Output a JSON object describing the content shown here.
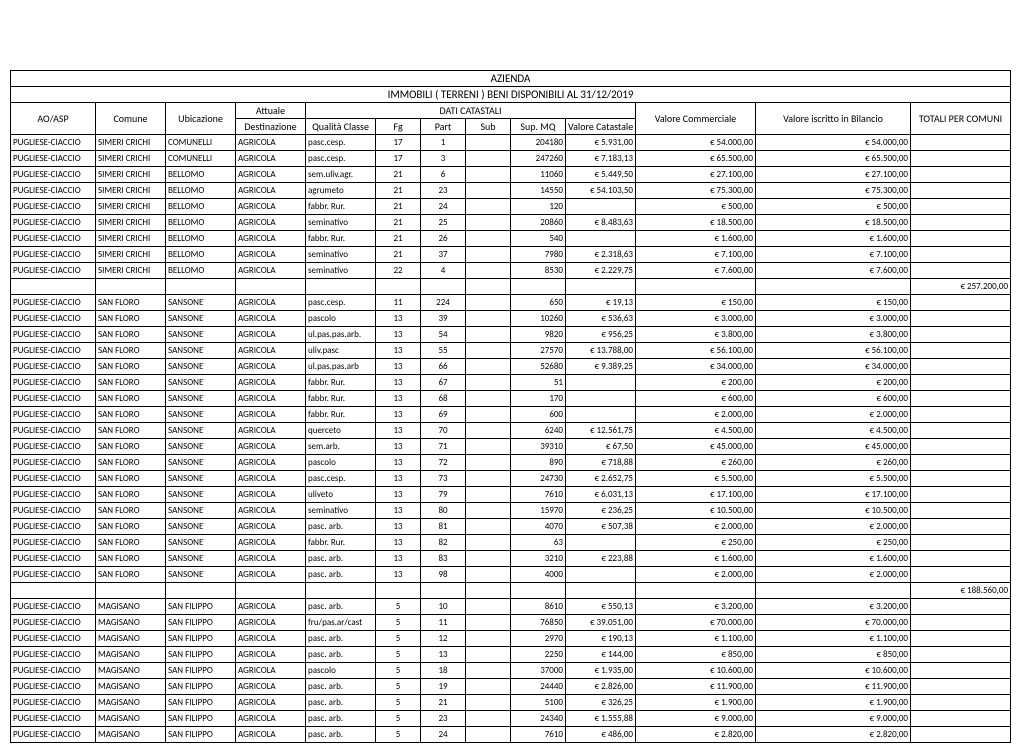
{
  "title1": "AZIENDA",
  "title2": "IMMOBILI ( TERRENI ) BENI DISPONIBILI AL 31/12/2019",
  "headers": {
    "ao": "AO/ASP",
    "comune": "Comune",
    "ubicazione": "Ubicazione",
    "attuale": "Attuale",
    "destinazione": "Destinazione",
    "dati": "DATI CATASTALI",
    "qc": "Qualità Classe",
    "fg": "Fg",
    "part": "Part",
    "sub": "Sub",
    "supmq": "Sup. MQ",
    "valc": "Valore Catastale",
    "vcom": "Valore Commerciale",
    "vbil": "Valore iscritto in Bilancio",
    "tot": "TOTALI PER COMUNI"
  },
  "rows": [
    {
      "ao": "PUGLIESE-CIACCIO",
      "com": "SIMERI CRICHI",
      "ubi": "COMUNELLI",
      "dest": "AGRICOLA",
      "qc": "pasc.cesp.",
      "fg": "17",
      "part": "1",
      "sub": "",
      "sup": "204180",
      "valc": "€ 5.931,00",
      "vcom": "€ 54.000,00",
      "vbil": "€ 54.000,00",
      "tot": ""
    },
    {
      "ao": "PUGLIESE-CIACCIO",
      "com": "SIMERI CRICHI",
      "ubi": "COMUNELLI",
      "dest": "AGRICOLA",
      "qc": "pasc.cesp.",
      "fg": "17",
      "part": "3",
      "sub": "",
      "sup": "247260",
      "valc": "€ 7.183,13",
      "vcom": "€ 65.500,00",
      "vbil": "€ 65.500,00",
      "tot": ""
    },
    {
      "ao": "PUGLIESE-CIACCIO",
      "com": "SIMERI CRICHI",
      "ubi": "BELLOMO",
      "dest": "AGRICOLA",
      "qc": "sem.uliv.agr.",
      "fg": "21",
      "part": "6",
      "sub": "",
      "sup": "11060",
      "valc": "€ 5.449,50",
      "vcom": "€ 27.100,00",
      "vbil": "€ 27.100,00",
      "tot": ""
    },
    {
      "ao": "PUGLIESE-CIACCIO",
      "com": "SIMERI CRICHI",
      "ubi": "BELLOMO",
      "dest": "AGRICOLA",
      "qc": "agrumeto",
      "fg": "21",
      "part": "23",
      "sub": "",
      "sup": "14550",
      "valc": "€ 54.103,50",
      "vcom": "€ 75.300,00",
      "vbil": "€ 75.300,00",
      "tot": ""
    },
    {
      "ao": "PUGLIESE-CIACCIO",
      "com": "SIMERI CRICHI",
      "ubi": "BELLOMO",
      "dest": "AGRICOLA",
      "qc": "fabbr. Rur.",
      "fg": "21",
      "part": "24",
      "sub": "",
      "sup": "120",
      "valc": "",
      "vcom": "€ 500,00",
      "vbil": "€ 500,00",
      "tot": ""
    },
    {
      "ao": "PUGLIESE-CIACCIO",
      "com": "SIMERI CRICHI",
      "ubi": "BELLOMO",
      "dest": "AGRICOLA",
      "qc": "seminativo",
      "fg": "21",
      "part": "25",
      "sub": "",
      "sup": "20860",
      "valc": "€ 8.483,63",
      "vcom": "€ 18.500,00",
      "vbil": "€ 18.500,00",
      "tot": ""
    },
    {
      "ao": "PUGLIESE-CIACCIO",
      "com": "SIMERI CRICHI",
      "ubi": "BELLOMO",
      "dest": "AGRICOLA",
      "qc": "fabbr. Rur.",
      "fg": "21",
      "part": "26",
      "sub": "",
      "sup": "540",
      "valc": "",
      "vcom": "€ 1.600,00",
      "vbil": "€ 1.600,00",
      "tot": ""
    },
    {
      "ao": "PUGLIESE-CIACCIO",
      "com": "SIMERI CRICHI",
      "ubi": "BELLOMO",
      "dest": "AGRICOLA",
      "qc": "seminativo",
      "fg": "21",
      "part": "37",
      "sub": "",
      "sup": "7980",
      "valc": "€ 2.318,63",
      "vcom": "€ 7.100,00",
      "vbil": "€ 7.100,00",
      "tot": ""
    },
    {
      "ao": "PUGLIESE-CIACCIO",
      "com": "SIMERI CRICHI",
      "ubi": "BELLOMO",
      "dest": "AGRICOLA",
      "qc": "seminativo",
      "fg": "22",
      "part": "4",
      "sub": "",
      "sup": "8530",
      "valc": "€ 2.229,75",
      "vcom": "€ 7.600,00",
      "vbil": "€ 7.600,00",
      "tot": "",
      "solid": true
    },
    {
      "blank": true,
      "tot": "€ 257.200,00"
    },
    {
      "ao": "PUGLIESE-CIACCIO",
      "com": "SAN FLORO",
      "ubi": "SANSONE",
      "dest": "AGRICOLA",
      "qc": "pasc.cesp.",
      "fg": "11",
      "part": "224",
      "sub": "",
      "sup": "650",
      "valc": "€ 19,13",
      "vcom": "€ 150,00",
      "vbil": "€ 150,00",
      "tot": ""
    },
    {
      "ao": "PUGLIESE-CIACCIO",
      "com": "SAN FLORO",
      "ubi": "SANSONE",
      "dest": "AGRICOLA",
      "qc": "pascolo",
      "fg": "13",
      "part": "39",
      "sub": "",
      "sup": "10260",
      "valc": "€ 536,63",
      "vcom": "€ 3.000,00",
      "vbil": "€ 3.000,00",
      "tot": ""
    },
    {
      "ao": "PUGLIESE-CIACCIO",
      "com": "SAN FLORO",
      "ubi": "SANSONE",
      "dest": "AGRICOLA",
      "qc": "ul.pas.pas.arb.",
      "fg": "13",
      "part": "54",
      "sub": "",
      "sup": "9820",
      "valc": "€ 956,25",
      "vcom": "€ 3.800,00",
      "vbil": "€ 3.800,00",
      "tot": ""
    },
    {
      "ao": "PUGLIESE-CIACCIO",
      "com": "SAN FLORO",
      "ubi": "SANSONE",
      "dest": "AGRICOLA",
      "qc": "uliv.pasc",
      "fg": "13",
      "part": "55",
      "sub": "",
      "sup": "27570",
      "valc": "€ 13.788,00",
      "vcom": "€ 56.100,00",
      "vbil": "€ 56.100,00",
      "tot": ""
    },
    {
      "ao": "PUGLIESE-CIACCIO",
      "com": "SAN FLORO",
      "ubi": "SANSONE",
      "dest": "AGRICOLA",
      "qc": "ul.pas.pas.arb",
      "fg": "13",
      "part": "66",
      "sub": "",
      "sup": "52680",
      "valc": "€ 9.389,25",
      "vcom": "€ 34.000,00",
      "vbil": "€ 34.000,00",
      "tot": ""
    },
    {
      "ao": "PUGLIESE-CIACCIO",
      "com": "SAN FLORO",
      "ubi": "SANSONE",
      "dest": "AGRICOLA",
      "qc": "fabbr. Rur.",
      "fg": "13",
      "part": "67",
      "sub": "",
      "sup": "51",
      "valc": "",
      "vcom": "€ 200,00",
      "vbil": "€ 200,00",
      "tot": ""
    },
    {
      "ao": "PUGLIESE-CIACCIO",
      "com": "SAN FLORO",
      "ubi": "SANSONE",
      "dest": "AGRICOLA",
      "qc": "fabbr. Rur.",
      "fg": "13",
      "part": "68",
      "sub": "",
      "sup": "170",
      "valc": "",
      "vcom": "€ 600,00",
      "vbil": "€ 600,00",
      "tot": ""
    },
    {
      "ao": "PUGLIESE-CIACCIO",
      "com": "SAN FLORO",
      "ubi": "SANSONE",
      "dest": "AGRICOLA",
      "qc": "fabbr. Rur.",
      "fg": "13",
      "part": "69",
      "sub": "",
      "sup": "600",
      "valc": "",
      "vcom": "€ 2.000,00",
      "vbil": "€ 2.000,00",
      "tot": ""
    },
    {
      "ao": "PUGLIESE-CIACCIO",
      "com": "SAN FLORO",
      "ubi": "SANSONE",
      "dest": "AGRICOLA",
      "qc": "querceto",
      "fg": "13",
      "part": "70",
      "sub": "",
      "sup": "6240",
      "valc": "€ 12.561,75",
      "vcom": "€ 4.500,00",
      "vbil": "€ 4.500,00",
      "tot": ""
    },
    {
      "ao": "PUGLIESE-CIACCIO",
      "com": "SAN FLORO",
      "ubi": "SANSONE",
      "dest": "AGRICOLA",
      "qc": "sem.arb.",
      "fg": "13",
      "part": "71",
      "sub": "",
      "sup": "39310",
      "valc": "€ 67,50",
      "vcom": "€ 45.000,00",
      "vbil": "€ 45.000,00",
      "tot": ""
    },
    {
      "ao": "PUGLIESE-CIACCIO",
      "com": "SAN FLORO",
      "ubi": "SANSONE",
      "dest": "AGRICOLA",
      "qc": "pascolo",
      "fg": "13",
      "part": "72",
      "sub": "",
      "sup": "890",
      "valc": "€ 718,88",
      "vcom": "€ 260,00",
      "vbil": "€ 260,00",
      "tot": ""
    },
    {
      "ao": "PUGLIESE-CIACCIO",
      "com": "SAN FLORO",
      "ubi": "SANSONE",
      "dest": "AGRICOLA",
      "qc": "pasc.cesp.",
      "fg": "13",
      "part": "73",
      "sub": "",
      "sup": "24730",
      "valc": "€ 2.652,75",
      "vcom": "€ 5.500,00",
      "vbil": "€ 5.500,00",
      "tot": ""
    },
    {
      "ao": "PUGLIESE-CIACCIO",
      "com": "SAN FLORO",
      "ubi": "SANSONE",
      "dest": "AGRICOLA",
      "qc": "uliveto",
      "fg": "13",
      "part": "79",
      "sub": "",
      "sup": "7610",
      "valc": "€ 6.031,13",
      "vcom": "€ 17.100,00",
      "vbil": "€ 17.100,00",
      "tot": ""
    },
    {
      "ao": "PUGLIESE-CIACCIO",
      "com": "SAN FLORO",
      "ubi": "SANSONE",
      "dest": "AGRICOLA",
      "qc": "seminativo",
      "fg": "13",
      "part": "80",
      "sub": "",
      "sup": "15970",
      "valc": "€ 236,25",
      "vcom": "€ 10.500,00",
      "vbil": "€ 10.500,00",
      "tot": ""
    },
    {
      "ao": "PUGLIESE-CIACCIO",
      "com": "SAN FLORO",
      "ubi": "SANSONE",
      "dest": "AGRICOLA",
      "qc": "pasc. arb.",
      "fg": "13",
      "part": "81",
      "sub": "",
      "sup": "4070",
      "valc": "€ 507,38",
      "vcom": "€ 2.000,00",
      "vbil": "€ 2.000,00",
      "tot": ""
    },
    {
      "ao": "PUGLIESE-CIACCIO",
      "com": "SAN FLORO",
      "ubi": "SANSONE",
      "dest": "AGRICOLA",
      "qc": "fabbr. Rur.",
      "fg": "13",
      "part": "82",
      "sub": "",
      "sup": "63",
      "valc": "",
      "vcom": "€ 250,00",
      "vbil": "€ 250,00",
      "tot": ""
    },
    {
      "ao": "PUGLIESE-CIACCIO",
      "com": "SAN FLORO",
      "ubi": "SANSONE",
      "dest": "AGRICOLA",
      "qc": "pasc. arb.",
      "fg": "13",
      "part": "83",
      "sub": "",
      "sup": "3210",
      "valc": "€ 223,88",
      "vcom": "€ 1.600,00",
      "vbil": "€ 1.600,00",
      "tot": ""
    },
    {
      "ao": "PUGLIESE-CIACCIO",
      "com": "SAN FLORO",
      "ubi": "SANSONE",
      "dest": "AGRICOLA",
      "qc": "pasc. arb.",
      "fg": "13",
      "part": "98",
      "sub": "",
      "sup": "4000",
      "valc": "",
      "vcom": "€ 2.000,00",
      "vbil": "€ 2.000,00",
      "tot": "",
      "solid": true
    },
    {
      "blank": true,
      "tot": "€ 188.560,00"
    },
    {
      "ao": "PUGLIESE-CIACCIO",
      "com": "MAGISANO",
      "ubi": "SAN FILIPPO",
      "dest": "AGRICOLA",
      "qc": "pasc. arb.",
      "fg": "5",
      "part": "10",
      "sub": "",
      "sup": "8610",
      "valc": "€ 550,13",
      "vcom": "€ 3.200,00",
      "vbil": "€ 3.200,00",
      "tot": ""
    },
    {
      "ao": "PUGLIESE-CIACCIO",
      "com": "MAGISANO",
      "ubi": "SAN FILIPPO",
      "dest": "AGRICOLA",
      "qc": "fru/pas.ar/cast",
      "fg": "5",
      "part": "11",
      "sub": "",
      "sup": "76850",
      "valc": "€ 39.051,00",
      "vcom": "€ 70.000,00",
      "vbil": "€ 70.000,00",
      "tot": ""
    },
    {
      "ao": "PUGLIESE-CIACCIO",
      "com": "MAGISANO",
      "ubi": "SAN FILIPPO",
      "dest": "AGRICOLA",
      "qc": "pasc. arb.",
      "fg": "5",
      "part": "12",
      "sub": "",
      "sup": "2970",
      "valc": "€ 190,13",
      "vcom": "€ 1.100,00",
      "vbil": "€ 1.100,00",
      "tot": ""
    },
    {
      "ao": "PUGLIESE-CIACCIO",
      "com": "MAGISANO",
      "ubi": "SAN FILIPPO",
      "dest": "AGRICOLA",
      "qc": "pasc. arb.",
      "fg": "5",
      "part": "13",
      "sub": "",
      "sup": "2250",
      "valc": "€ 144,00",
      "vcom": "€ 850,00",
      "vbil": "€ 850,00",
      "tot": ""
    },
    {
      "ao": "PUGLIESE-CIACCIO",
      "com": "MAGISANO",
      "ubi": "SAN FILIPPO",
      "dest": "AGRICOLA",
      "qc": "pascolo",
      "fg": "5",
      "part": "18",
      "sub": "",
      "sup": "37000",
      "valc": "€ 1.935,00",
      "vcom": "€ 10.600,00",
      "vbil": "€ 10.600,00",
      "tot": ""
    },
    {
      "ao": "PUGLIESE-CIACCIO",
      "com": "MAGISANO",
      "ubi": "SAN FILIPPO",
      "dest": "AGRICOLA",
      "qc": "pasc. arb.",
      "fg": "5",
      "part": "19",
      "sub": "",
      "sup": "24440",
      "valc": "€ 2.826,00",
      "vcom": "€ 11.900,00",
      "vbil": "€ 11.900,00",
      "tot": ""
    },
    {
      "ao": "PUGLIESE-CIACCIO",
      "com": "MAGISANO",
      "ubi": "SAN FILIPPO",
      "dest": "AGRICOLA",
      "qc": "pasc. arb.",
      "fg": "5",
      "part": "21",
      "sub": "",
      "sup": "5100",
      "valc": "€ 326,25",
      "vcom": "€ 1.900,00",
      "vbil": "€ 1.900,00",
      "tot": ""
    },
    {
      "ao": "PUGLIESE-CIACCIO",
      "com": "MAGISANO",
      "ubi": "SAN FILIPPO",
      "dest": "AGRICOLA",
      "qc": "pasc. arb.",
      "fg": "5",
      "part": "23",
      "sub": "",
      "sup": "24340",
      "valc": "€ 1.555,88",
      "vcom": "€ 9.000,00",
      "vbil": "€ 9.000,00",
      "tot": ""
    },
    {
      "ao": "PUGLIESE-CIACCIO",
      "com": "MAGISANO",
      "ubi": "SAN FILIPPO",
      "dest": "AGRICOLA",
      "qc": "pasc. arb.",
      "fg": "5",
      "part": "24",
      "sub": "",
      "sup": "7610",
      "valc": "€ 486,00",
      "vcom": "€ 2.820,00",
      "vbil": "€ 2.820,00",
      "tot": "",
      "solid": true
    }
  ]
}
